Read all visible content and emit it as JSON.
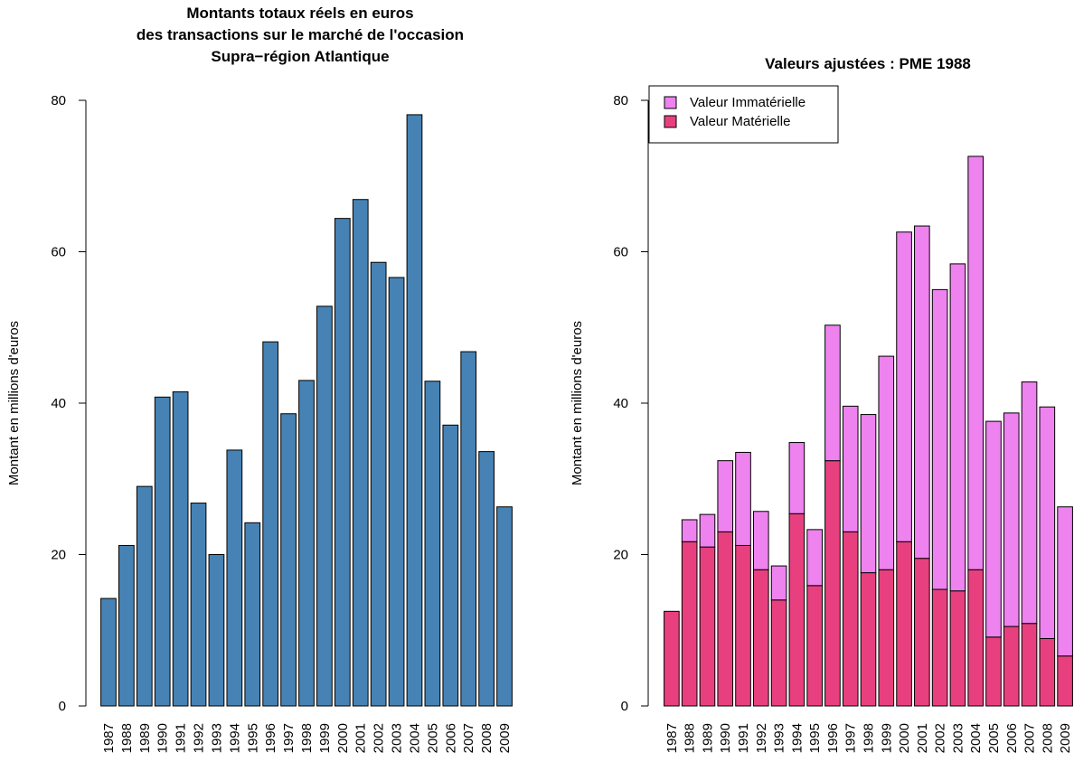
{
  "chart_data": [
    {
      "type": "bar",
      "title": [
        "Montants totaux réels en euros",
        "des transactions sur le marché de l'occasion",
        "Supra−région Atlantique"
      ],
      "y_label": "Montant en millions d'euros",
      "categories": [
        "1987",
        "1988",
        "1989",
        "1990",
        "1991",
        "1992",
        "1993",
        "1994",
        "1995",
        "1996",
        "1997",
        "1998",
        "1999",
        "2000",
        "2001",
        "2002",
        "2003",
        "2004",
        "2005",
        "2006",
        "2007",
        "2008",
        "2009"
      ],
      "values": [
        14.2,
        21.2,
        29,
        40.8,
        41.5,
        26.8,
        20,
        33.8,
        24.2,
        48.1,
        38.6,
        43,
        52.8,
        64.4,
        66.9,
        58.6,
        56.6,
        78.1,
        42.9,
        37.1,
        46.8,
        33.6,
        26.3
      ],
      "color": "#4682b4",
      "ylim": [
        0,
        80
      ],
      "yticks": [
        0,
        20,
        40,
        60,
        80
      ]
    },
    {
      "type": "stacked_bar",
      "title": [
        "Valeurs ajustées : PME 1988"
      ],
      "y_label": "Montant en millions d'euros",
      "categories": [
        "1987",
        "1988",
        "1989",
        "1990",
        "1991",
        "1992",
        "1993",
        "1994",
        "1995",
        "1996",
        "1997",
        "1998",
        "1999",
        "2000",
        "2001",
        "2002",
        "2003",
        "2004",
        "2005",
        "2006",
        "2007",
        "2008",
        "2009"
      ],
      "series": [
        {
          "name": "Valeur Immatérielle",
          "color": "#ee82ee",
          "values": [
            0,
            2.9,
            4.3,
            9.4,
            12.3,
            7.7,
            4.5,
            9.4,
            7.4,
            17.9,
            16.6,
            20.9,
            28.2,
            40.9,
            43.9,
            39.6,
            43.2,
            54.6,
            28.5,
            28.2,
            31.9,
            30.6,
            19.7
          ]
        },
        {
          "name": "Valeur Matérielle",
          "color": "#e8407f",
          "values": [
            12.5,
            21.7,
            21,
            23,
            21.2,
            18,
            14,
            25.4,
            15.9,
            32.4,
            23,
            17.6,
            18,
            21.7,
            19.5,
            15.4,
            15.2,
            18,
            9.1,
            10.5,
            10.9,
            8.9,
            6.6
          ]
        }
      ],
      "legend": "top-left",
      "ylim": [
        0,
        80
      ],
      "yticks": [
        0,
        20,
        40,
        60,
        80
      ]
    }
  ]
}
